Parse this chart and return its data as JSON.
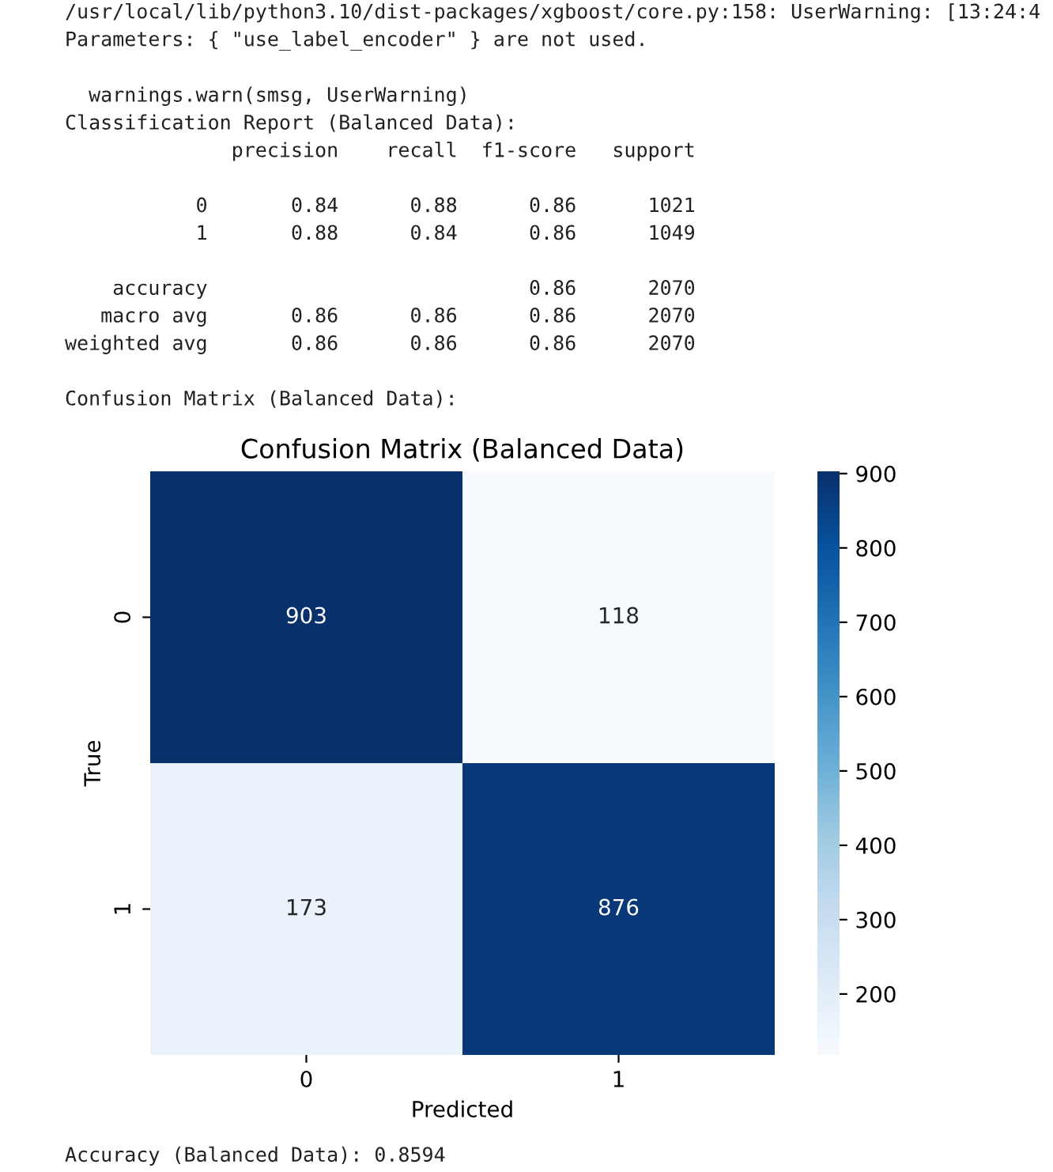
{
  "chart_data": {
    "type": "heatmap",
    "title": "Confusion Matrix (Balanced Data)",
    "xlabel": "Predicted",
    "ylabel": "True",
    "categories": [
      "0",
      "1"
    ],
    "y_categories": [
      "0",
      "1"
    ],
    "cells": [
      [
        903,
        118
      ],
      [
        173,
        876
      ]
    ],
    "clim": [
      118,
      903
    ],
    "cticks": [
      200,
      300,
      400,
      500,
      600,
      700,
      800,
      900
    ],
    "data_labels": true,
    "annotations": [
      "/usr/local/lib/python3.10/dist-packages/xgboost/core.py:158: UserWarning: [13:24:4\nParameters: { \"use_label_encoder\" } are not used.\n\n  warnings.warn(smsg, UserWarning)\nClassification Report (Balanced Data):\n              precision    recall  f1-score   support\n\n           0       0.84      0.88      0.86      1021\n           1       0.88      0.84      0.86      1049\n\n    accuracy                           0.86      2070\n   macro avg       0.86      0.86      0.86      2070\nweighted avg       0.86      0.86      0.86      2070\n\nConfusion Matrix (Balanced Data):",
      "Accuracy (Balanced Data): 0.8594"
    ]
  }
}
